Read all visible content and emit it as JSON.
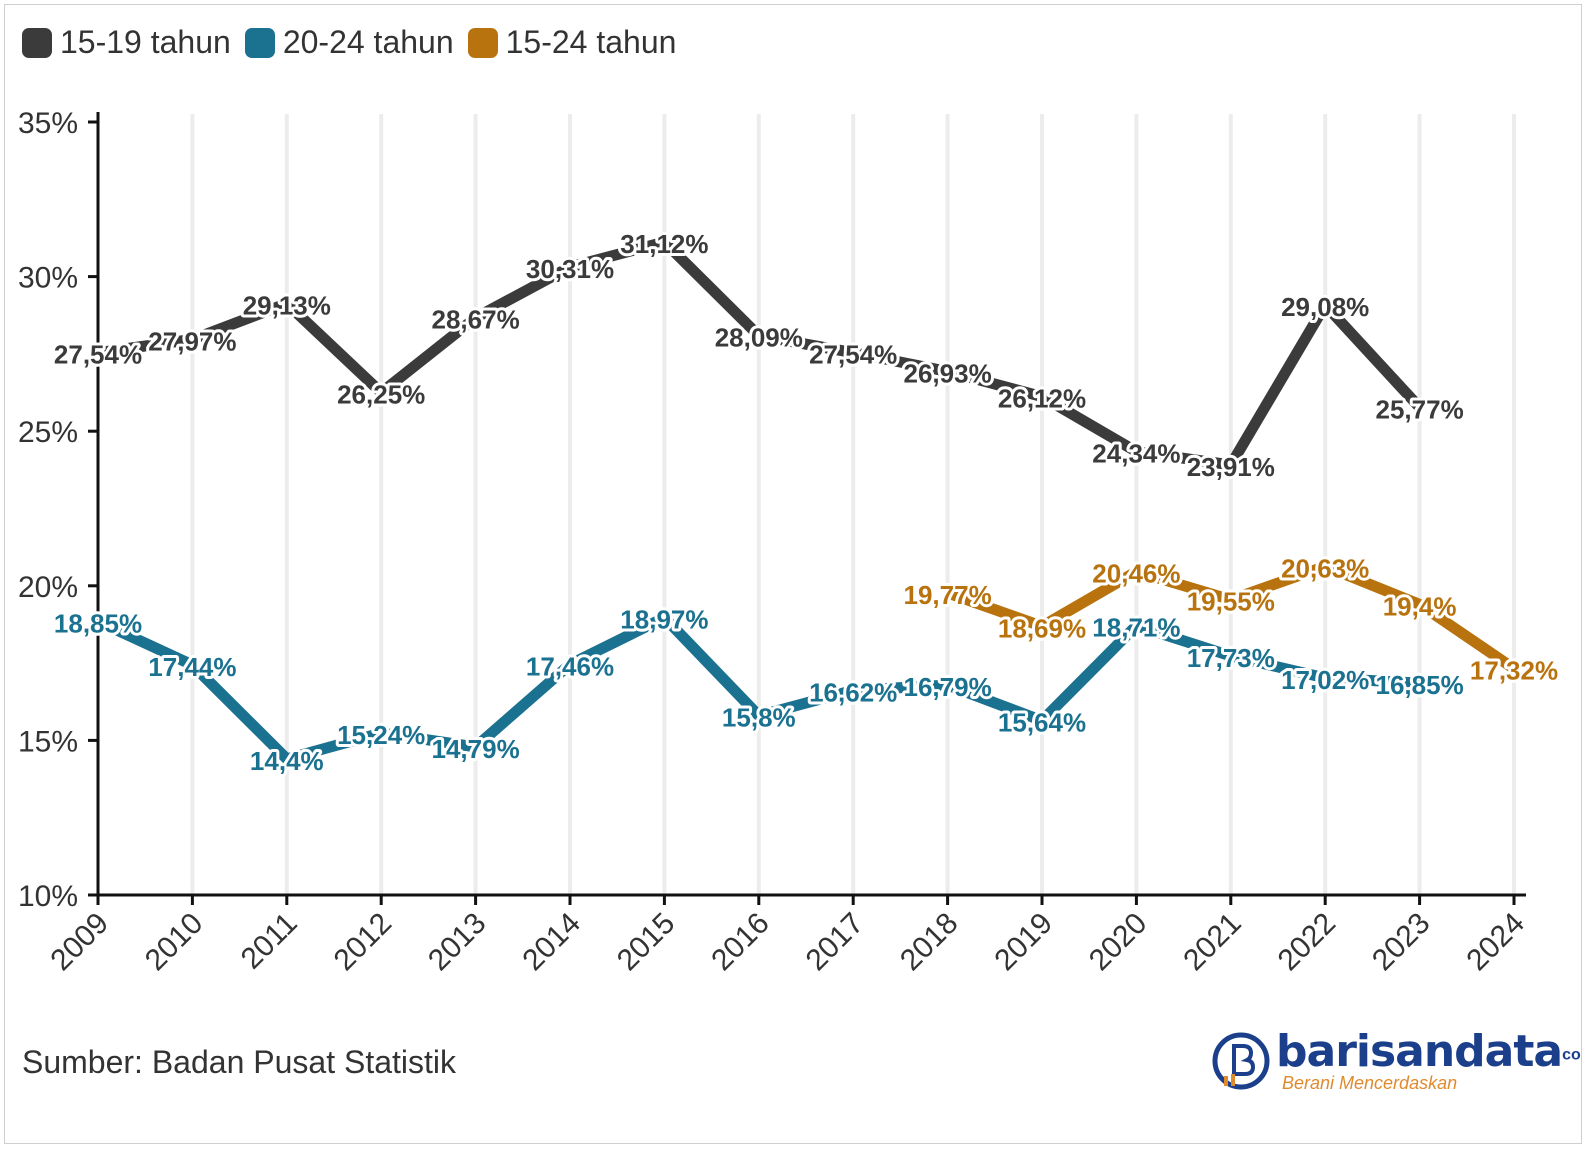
{
  "legend": [
    {
      "label": "15-19 tahun",
      "color": "#3b3b3b"
    },
    {
      "label": "20-24 tahun",
      "color": "#1a7190"
    },
    {
      "label": "15-24 tahun",
      "color": "#b8730e"
    }
  ],
  "source": "Sumber: Badan Pusat Statistik",
  "logo": {
    "name": "barisandata",
    "suffix": "co",
    "tagline": "Berani Mencerdaskan"
  },
  "chart_data": {
    "type": "line",
    "x": [
      "2009",
      "2010",
      "2011",
      "2012",
      "2013",
      "2014",
      "2015",
      "2016",
      "2017",
      "2018",
      "2019",
      "2020",
      "2021",
      "2022",
      "2023",
      "2024"
    ],
    "ylim": [
      10,
      35
    ],
    "yticks": [
      10,
      15,
      20,
      25,
      30,
      35
    ],
    "ytick_labels": [
      "10%",
      "15%",
      "20%",
      "25%",
      "30%",
      "35%"
    ],
    "grid": "vertical",
    "legend_position": "top-left",
    "series": [
      {
        "name": "15-19 tahun",
        "color": "#3b3b3b",
        "values": [
          27.54,
          27.97,
          29.13,
          26.25,
          28.67,
          30.31,
          31.12,
          28.09,
          27.54,
          26.93,
          26.12,
          24.34,
          23.91,
          29.08,
          25.77,
          null
        ],
        "labels": [
          "27,54%",
          "27,97%",
          "29,13%",
          "26,25%",
          "28,67%",
          "30,31%",
          "31,12%",
          "28,09%",
          "27,54%",
          "26,93%",
          "26,12%",
          "24,34%",
          "23,91%",
          "29,08%",
          "25,77%",
          null
        ]
      },
      {
        "name": "20-24 tahun",
        "color": "#1a7190",
        "values": [
          18.85,
          17.44,
          14.4,
          15.24,
          14.79,
          17.46,
          18.97,
          15.8,
          16.62,
          16.79,
          15.64,
          18.71,
          17.73,
          17.02,
          16.85,
          null
        ],
        "labels": [
          "18,85%",
          "17,44%",
          "14,4%",
          "15,24%",
          "14,79%",
          "17,46%",
          "18,97%",
          "15,8%",
          "16,62%",
          "16,79%",
          "15,64%",
          "18,71%",
          "17,73%",
          "17,02%",
          "16,85%",
          null
        ]
      },
      {
        "name": "15-24 tahun",
        "color": "#b8730e",
        "values": [
          null,
          null,
          null,
          null,
          null,
          null,
          null,
          null,
          null,
          19.77,
          18.69,
          20.46,
          19.55,
          20.63,
          19.4,
          17.32
        ],
        "labels": [
          null,
          null,
          null,
          null,
          null,
          null,
          null,
          null,
          null,
          "19,77%",
          "18,69%",
          "20,46%",
          "19,55%",
          "20,63%",
          "19,4%",
          "17,32%"
        ]
      }
    ]
  }
}
